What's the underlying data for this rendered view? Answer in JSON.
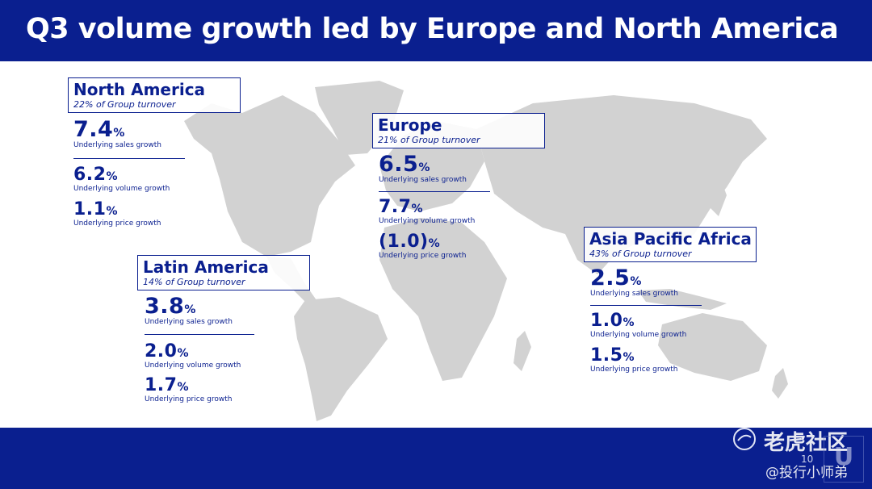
{
  "title": "Q3 volume growth led by Europe and North America",
  "regions": {
    "north_america": {
      "name": "North America",
      "turnover": "22% of Group turnover",
      "sales": "7.4",
      "sales_label": "Underlying sales growth",
      "volume": "6.2",
      "volume_label": "Underlying volume growth",
      "price": "1.1",
      "price_label": "Underlying price growth"
    },
    "latin_america": {
      "name": "Latin America",
      "turnover": "14% of Group turnover",
      "sales": "3.8",
      "sales_label": "Underlying sales growth",
      "volume": "2.0",
      "volume_label": "Underlying volume growth",
      "price": "1.7",
      "price_label": "Underlying price growth"
    },
    "europe": {
      "name": "Europe",
      "turnover": "21% of Group turnover",
      "sales": "6.5",
      "sales_label": "Underlying sales growth",
      "volume": "7.7",
      "volume_label": "Underlying volume growth",
      "price": "(1.0)",
      "price_label": "Underlying price growth"
    },
    "apa": {
      "name": "Asia Pacific Africa",
      "turnover": "43% of Group turnover",
      "sales": "2.5",
      "sales_label": "Underlying sales growth",
      "volume": "1.0",
      "volume_label": "Underlying volume growth",
      "price": "1.5",
      "price_label": "Underlying price growth"
    }
  },
  "percent_sign": "%",
  "page_number": "10",
  "watermark": {
    "brand": "老虎社区",
    "handle": "@投行小师弟"
  },
  "colors": {
    "brand_blue": "#0a1f8f",
    "map_grey": "#d2d2d2"
  }
}
